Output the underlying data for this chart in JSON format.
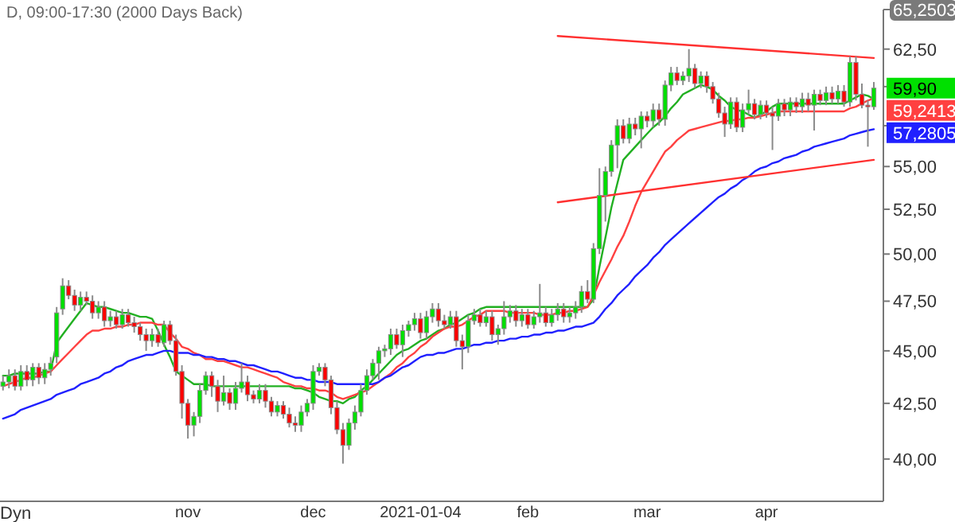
{
  "chart_data": {
    "type": "candlestick",
    "title": "D, 09:00-17:30 (2000 Days Back)",
    "categories": [
      null,
      null,
      null,
      null,
      null,
      null,
      null,
      null,
      null,
      null,
      null,
      null,
      null,
      null,
      null,
      null,
      null,
      null,
      null,
      null,
      null,
      null,
      null,
      null,
      null,
      null,
      null,
      null,
      null,
      null,
      null,
      "nov",
      null,
      null,
      null,
      null,
      null,
      null,
      null,
      null,
      null,
      null,
      null,
      null,
      null,
      null,
      null,
      null,
      null,
      null,
      null,
      null,
      "dec",
      null,
      null,
      null,
      null,
      null,
      null,
      null,
      null,
      null,
      null,
      null,
      null,
      null,
      null,
      null,
      null,
      null,
      "2021-01-04",
      null,
      null,
      null,
      null,
      null,
      null,
      null,
      null,
      null,
      null,
      null,
      null,
      null,
      null,
      null,
      null,
      null,
      "feb",
      null,
      null,
      null,
      null,
      null,
      null,
      null,
      null,
      null,
      null,
      null,
      null,
      null,
      null,
      null,
      null,
      null,
      null,
      null,
      "mar",
      null,
      null,
      null,
      null,
      null,
      null,
      null,
      null,
      null,
      null,
      null,
      null,
      null,
      null,
      null,
      null,
      null,
      null,
      null,
      "apr",
      null,
      null,
      null,
      null,
      null,
      null,
      null,
      null,
      null,
      null,
      null,
      null,
      null,
      null,
      null,
      null,
      null,
      null
    ],
    "ohlc": [
      [
        43.3,
        43.8,
        43.1,
        43.5
      ],
      [
        43.5,
        44.1,
        43.2,
        43.8
      ],
      [
        43.8,
        44.1,
        43.1,
        43.3
      ],
      [
        43.3,
        44.3,
        43.1,
        44.0
      ],
      [
        44.0,
        44.3,
        43.3,
        43.6
      ],
      [
        43.6,
        44.4,
        43.3,
        44.2
      ],
      [
        44.2,
        44.4,
        43.4,
        43.7
      ],
      [
        43.7,
        44.4,
        43.4,
        44.1
      ],
      [
        44.1,
        44.7,
        43.8,
        44.4
      ],
      [
        44.7,
        47.2,
        44.4,
        46.9
      ],
      [
        47.1,
        48.7,
        46.8,
        48.3
      ],
      [
        48.3,
        48.6,
        47.6,
        47.8
      ],
      [
        47.8,
        48.1,
        47.0,
        47.3
      ],
      [
        47.3,
        48.0,
        47.0,
        47.7
      ],
      [
        47.7,
        48.0,
        47.3,
        47.5
      ],
      [
        47.5,
        47.8,
        46.6,
        46.9
      ],
      [
        46.9,
        47.5,
        46.6,
        47.2
      ],
      [
        47.2,
        47.5,
        46.2,
        46.5
      ],
      [
        46.5,
        47.0,
        46.2,
        46.7
      ],
      [
        46.7,
        47.0,
        46.1,
        46.3
      ],
      [
        46.3,
        47.1,
        46.1,
        46.8
      ],
      [
        46.8,
        47.1,
        46.2,
        46.4
      ],
      [
        46.4,
        46.7,
        45.9,
        46.2
      ],
      [
        46.2,
        46.4,
        45.5,
        45.8
      ],
      [
        45.8,
        46.1,
        45.0,
        45.5
      ],
      [
        45.5,
        46.1,
        45.2,
        45.8
      ],
      [
        45.8,
        46.1,
        45.2,
        45.4
      ],
      [
        45.4,
        46.5,
        45.2,
        46.3
      ],
      [
        46.3,
        46.5,
        45.3,
        45.5
      ],
      [
        45.5,
        45.8,
        43.8,
        44.0
      ],
      [
        44.0,
        44.3,
        41.8,
        42.5
      ],
      [
        42.5,
        42.7,
        40.9,
        41.5
      ],
      [
        41.5,
        42.1,
        41.0,
        41.9
      ],
      [
        41.9,
        43.4,
        41.6,
        43.1
      ],
      [
        43.1,
        44.0,
        42.9,
        43.8
      ],
      [
        43.8,
        44.0,
        42.8,
        43.3
      ],
      [
        43.3,
        43.6,
        42.1,
        42.6
      ],
      [
        42.6,
        43.8,
        42.4,
        43.0
      ],
      [
        43.0,
        43.2,
        42.2,
        42.5
      ],
      [
        42.5,
        43.5,
        42.2,
        43.2
      ],
      [
        43.2,
        44.4,
        43.0,
        43.5
      ],
      [
        43.5,
        43.8,
        42.6,
        42.9
      ],
      [
        42.9,
        43.1,
        42.5,
        42.7
      ],
      [
        42.7,
        43.4,
        42.5,
        43.1
      ],
      [
        43.1,
        43.4,
        42.3,
        42.6
      ],
      [
        42.6,
        42.8,
        41.9,
        42.1
      ],
      [
        42.1,
        42.6,
        41.9,
        42.4
      ],
      [
        42.4,
        42.6,
        41.8,
        42.0
      ],
      [
        42.0,
        42.3,
        41.4,
        41.6
      ],
      [
        41.6,
        41.9,
        41.2,
        41.5
      ],
      [
        41.5,
        42.4,
        41.2,
        42.1
      ],
      [
        42.1,
        42.7,
        41.9,
        42.5
      ],
      [
        42.5,
        44.3,
        42.2,
        44.0
      ],
      [
        44.0,
        44.4,
        43.8,
        44.2
      ],
      [
        44.2,
        44.4,
        43.3,
        43.6
      ],
      [
        43.6,
        43.8,
        42.0,
        42.3
      ],
      [
        42.3,
        42.6,
        41.1,
        41.3
      ],
      [
        41.3,
        41.6,
        39.8,
        40.6
      ],
      [
        40.6,
        41.8,
        40.4,
        41.6
      ],
      [
        41.6,
        42.4,
        41.3,
        42.1
      ],
      [
        42.1,
        43.4,
        41.9,
        43.1
      ],
      [
        43.1,
        44.1,
        42.9,
        43.8
      ],
      [
        43.8,
        44.6,
        43.6,
        44.4
      ],
      [
        44.4,
        45.2,
        43.6,
        45.0
      ],
      [
        45.0,
        45.3,
        44.7,
        45.1
      ],
      [
        45.1,
        46.1,
        44.8,
        45.8
      ],
      [
        45.8,
        46.1,
        45.1,
        45.3
      ],
      [
        45.3,
        46.3,
        44.7,
        46.0
      ],
      [
        46.0,
        46.5,
        45.7,
        46.3
      ],
      [
        46.3,
        46.9,
        46.0,
        46.6
      ],
      [
        46.6,
        46.9,
        45.6,
        45.9
      ],
      [
        45.9,
        47.0,
        45.6,
        46.7
      ],
      [
        46.7,
        47.4,
        46.4,
        47.1
      ],
      [
        47.1,
        47.4,
        46.2,
        46.5
      ],
      [
        46.5,
        46.8,
        46.1,
        46.3
      ],
      [
        46.3,
        47.0,
        46.1,
        46.7
      ],
      [
        46.7,
        47.0,
        45.2,
        45.5
      ],
      [
        45.5,
        45.8,
        44.1,
        45.2
      ],
      [
        45.2,
        46.8,
        44.9,
        46.5
      ],
      [
        46.5,
        47.1,
        46.3,
        46.8
      ],
      [
        46.8,
        47.1,
        46.2,
        46.4
      ],
      [
        46.4,
        47.0,
        46.2,
        46.7
      ],
      [
        46.7,
        47.0,
        45.5,
        45.8
      ],
      [
        45.8,
        46.3,
        45.3,
        46.1
      ],
      [
        46.1,
        47.5,
        45.8,
        46.7
      ],
      [
        46.7,
        47.3,
        46.4,
        47.0
      ],
      [
        47.0,
        47.3,
        46.2,
        46.5
      ],
      [
        46.5,
        47.1,
        46.2,
        46.8
      ],
      [
        46.8,
        47.1,
        46.1,
        46.3
      ],
      [
        46.3,
        47.0,
        46.1,
        46.7
      ],
      [
        46.7,
        48.4,
        46.4,
        46.9
      ],
      [
        46.9,
        47.2,
        46.2,
        46.4
      ],
      [
        46.4,
        47.1,
        46.2,
        46.8
      ],
      [
        46.8,
        47.4,
        46.5,
        47.1
      ],
      [
        47.1,
        47.4,
        46.4,
        46.7
      ],
      [
        46.7,
        47.2,
        46.4,
        46.9
      ],
      [
        46.9,
        47.5,
        46.6,
        47.2
      ],
      [
        47.2,
        48.3,
        46.9,
        48.0
      ],
      [
        48.0,
        48.6,
        47.4,
        47.6
      ],
      [
        47.6,
        50.6,
        47.4,
        50.3
      ],
      [
        50.3,
        54.9,
        50.0,
        53.3
      ],
      [
        53.3,
        55.0,
        51.8,
        54.7
      ],
      [
        54.7,
        56.6,
        54.4,
        56.3
      ],
      [
        56.3,
        57.9,
        54.9,
        57.5
      ],
      [
        57.5,
        57.9,
        56.4,
        56.7
      ],
      [
        56.7,
        58.0,
        56.4,
        57.6
      ],
      [
        57.6,
        58.0,
        56.9,
        57.3
      ],
      [
        57.3,
        58.4,
        56.1,
        58.1
      ],
      [
        58.1,
        58.4,
        57.4,
        57.8
      ],
      [
        57.8,
        58.9,
        57.4,
        58.5
      ],
      [
        58.5,
        58.9,
        57.5,
        57.9
      ],
      [
        57.9,
        60.4,
        57.5,
        60.1
      ],
      [
        60.1,
        61.3,
        59.7,
        60.9
      ],
      [
        60.9,
        61.3,
        60.1,
        60.4
      ],
      [
        60.4,
        61.0,
        60.1,
        60.7
      ],
      [
        60.7,
        62.5,
        60.3,
        61.2
      ],
      [
        61.2,
        61.5,
        59.9,
        60.2
      ],
      [
        60.2,
        61.0,
        59.9,
        60.7
      ],
      [
        60.7,
        61.0,
        59.6,
        60.0
      ],
      [
        60.0,
        60.3,
        58.9,
        59.2
      ],
      [
        59.2,
        59.6,
        58.0,
        58.3
      ],
      [
        58.3,
        58.7,
        56.8,
        57.6
      ],
      [
        57.6,
        59.3,
        57.3,
        59.0
      ],
      [
        59.0,
        59.3,
        57.1,
        57.4
      ],
      [
        57.4,
        58.9,
        57.1,
        58.5
      ],
      [
        58.5,
        59.8,
        58.2,
        58.9
      ],
      [
        58.9,
        59.2,
        57.9,
        58.2
      ],
      [
        58.2,
        59.1,
        57.9,
        58.8
      ],
      [
        58.8,
        59.1,
        58.0,
        58.3
      ],
      [
        58.3,
        58.7,
        56.0,
        58.1
      ],
      [
        58.1,
        59.2,
        57.8,
        58.9
      ],
      [
        58.9,
        59.2,
        58.1,
        58.5
      ],
      [
        58.5,
        59.3,
        58.1,
        59.0
      ],
      [
        59.0,
        59.3,
        58.3,
        58.7
      ],
      [
        58.7,
        59.6,
        58.3,
        59.2
      ],
      [
        59.2,
        59.6,
        58.4,
        58.8
      ],
      [
        58.8,
        59.8,
        57.2,
        59.5
      ],
      [
        59.5,
        59.8,
        58.8,
        59.1
      ],
      [
        59.1,
        60.0,
        58.8,
        59.6
      ],
      [
        59.6,
        60.0,
        58.9,
        59.2
      ],
      [
        59.2,
        60.1,
        58.9,
        59.7
      ],
      [
        59.7,
        60.1,
        58.7,
        59.0
      ],
      [
        59.0,
        62.0,
        58.7,
        61.6
      ],
      [
        61.6,
        62.0,
        59.1,
        59.5
      ],
      [
        59.5,
        60.2,
        58.6,
        58.8
      ],
      [
        58.8,
        59.1,
        56.2,
        58.7
      ],
      [
        58.7,
        60.3,
        58.5,
        59.9
      ]
    ],
    "series": [
      {
        "type": "line",
        "color": "#22b022",
        "values": [
          43.8,
          43.8,
          43.9,
          43.9,
          43.9,
          43.9,
          43.9,
          44.0,
          44.0,
          45.4,
          45.8,
          46.2,
          46.6,
          47.0,
          47.4,
          47.3,
          47.2,
          47.2,
          47.1,
          47.0,
          46.9,
          46.9,
          46.8,
          46.7,
          46.7,
          46.6,
          46.0,
          45.3,
          44.7,
          44.0,
          43.8,
          43.6,
          43.4,
          43.4,
          43.4,
          43.3,
          43.3,
          43.3,
          43.3,
          43.3,
          43.3,
          43.3,
          43.3,
          43.3,
          43.3,
          43.3,
          43.3,
          43.3,
          43.3,
          43.2,
          43.2,
          43.1,
          43.0,
          42.8,
          42.7,
          42.6,
          42.6,
          42.5,
          42.7,
          42.8,
          43.1,
          43.3,
          43.6,
          43.9,
          44.2,
          44.5,
          44.8,
          45.0,
          45.1,
          45.3,
          45.5,
          45.6,
          45.8,
          46.0,
          46.1,
          46.3,
          46.4,
          46.6,
          46.8,
          46.9,
          47.1,
          47.2,
          47.2,
          47.2,
          47.2,
          47.2,
          47.2,
          47.2,
          47.2,
          47.2,
          47.2,
          47.2,
          47.2,
          47.2,
          47.2,
          47.2,
          47.2,
          47.2,
          47.2,
          47.6,
          49.3,
          50.9,
          52.6,
          54.0,
          55.4,
          55.8,
          56.2,
          56.6,
          57.0,
          57.4,
          57.7,
          58.1,
          58.6,
          59.0,
          59.5,
          59.7,
          59.9,
          60.1,
          60.0,
          59.8,
          59.4,
          59.1,
          58.7,
          58.5,
          58.4,
          58.2,
          58.0,
          58.2,
          58.4,
          58.7,
          58.9,
          58.9,
          58.9,
          58.9,
          58.9,
          58.9,
          58.9,
          58.9,
          58.9,
          58.9,
          58.9,
          58.9,
          59.1,
          59.3,
          59.5,
          59.4,
          59.2
        ]
      },
      {
        "type": "line",
        "color": "#ff4040",
        "values": [
          43.3,
          43.4,
          43.5,
          43.6,
          43.7,
          43.7,
          43.8,
          43.9,
          44.0,
          44.3,
          44.6,
          44.9,
          45.2,
          45.5,
          45.8,
          46.0,
          46.0,
          46.1,
          46.1,
          46.2,
          46.2,
          46.3,
          46.3,
          46.4,
          46.4,
          46.4,
          46.3,
          46.3,
          45.9,
          45.6,
          45.2,
          45.1,
          44.9,
          44.8,
          44.6,
          44.6,
          44.5,
          44.5,
          44.4,
          44.3,
          44.2,
          44.2,
          44.1,
          44.0,
          43.9,
          43.8,
          43.7,
          43.5,
          43.4,
          43.3,
          43.3,
          43.2,
          43.2,
          43.1,
          43.1,
          43.0,
          42.8,
          42.7,
          42.8,
          42.9,
          43.0,
          43.1,
          43.3,
          43.5,
          43.7,
          43.9,
          44.2,
          44.4,
          44.7,
          44.9,
          45.2,
          45.4,
          45.7,
          45.9,
          46.1,
          46.2,
          46.2,
          46.3,
          46.5,
          46.7,
          46.8,
          47.0,
          47.0,
          47.0,
          47.0,
          46.9,
          46.9,
          46.9,
          46.9,
          46.9,
          46.8,
          46.8,
          46.8,
          46.9,
          46.9,
          47.0,
          47.0,
          47.1,
          47.2,
          47.8,
          48.5,
          49.1,
          49.7,
          50.4,
          51.0,
          51.8,
          52.7,
          53.5,
          54.1,
          54.7,
          55.3,
          55.9,
          56.2,
          56.6,
          56.9,
          57.2,
          57.3,
          57.4,
          57.5,
          57.6,
          57.7,
          57.8,
          57.8,
          57.9,
          57.9,
          58.0,
          58.0,
          58.1,
          58.2,
          58.3,
          58.4,
          58.4,
          58.4,
          58.4,
          58.4,
          58.4,
          58.4,
          58.4,
          58.4,
          58.4,
          58.4,
          58.4,
          58.6,
          58.7,
          58.9,
          59.1,
          59.2413
        ],
        "value_labels": [
          null,
          null,
          null,
          null,
          null,
          null,
          null,
          null,
          null,
          null,
          null,
          null,
          null,
          null,
          null,
          null,
          null,
          null,
          null,
          null,
          null,
          null,
          null,
          null,
          null,
          null,
          null,
          null,
          null,
          null,
          null,
          null,
          null,
          null,
          null,
          null,
          null,
          null,
          null,
          null,
          null,
          null,
          null,
          null,
          null,
          null,
          null,
          null,
          null,
          null,
          null,
          null,
          null,
          null,
          null,
          null,
          null,
          null,
          null,
          null,
          null,
          null,
          null,
          null,
          null,
          null,
          null,
          null,
          null,
          null,
          null,
          null,
          null,
          null,
          null,
          null,
          null,
          null,
          null,
          null,
          null,
          null,
          null,
          null,
          null,
          null,
          null,
          null,
          null,
          null,
          null,
          null,
          null,
          null,
          null,
          null,
          null,
          null,
          null,
          null,
          null,
          null,
          null,
          null,
          null,
          null,
          null,
          null,
          null,
          null,
          null,
          null,
          null,
          null,
          null,
          null,
          null,
          null,
          null,
          null,
          null,
          null,
          null,
          null,
          null,
          null,
          null,
          null,
          null,
          null,
          null,
          null,
          null,
          null,
          null,
          null,
          null,
          null,
          null,
          null,
          null,
          null,
          null,
          null,
          null,
          null,
          "59,2413"
        ]
      },
      {
        "type": "line",
        "color": "#2020ff",
        "values": [
          41.8,
          41.9,
          42.0,
          42.2,
          42.3,
          42.4,
          42.5,
          42.6,
          42.7,
          42.9,
          43.0,
          43.1,
          43.2,
          43.4,
          43.5,
          43.6,
          43.7,
          43.9,
          44.0,
          44.2,
          44.3,
          44.5,
          44.6,
          44.7,
          44.8,
          44.8,
          44.9,
          45.0,
          45.0,
          44.9,
          44.9,
          44.9,
          44.8,
          44.8,
          44.7,
          44.7,
          44.6,
          44.6,
          44.5,
          44.5,
          44.4,
          44.3,
          44.3,
          44.2,
          44.1,
          44.0,
          44.0,
          43.9,
          43.8,
          43.7,
          43.7,
          43.6,
          43.6,
          43.5,
          43.5,
          43.5,
          43.4,
          43.4,
          43.4,
          43.4,
          43.4,
          43.4,
          43.4,
          43.5,
          43.7,
          43.8,
          44.0,
          44.2,
          44.3,
          44.5,
          44.7,
          44.8,
          44.8,
          44.9,
          44.9,
          45.0,
          45.1,
          45.1,
          45.2,
          45.3,
          45.3,
          45.4,
          45.4,
          45.5,
          45.5,
          45.6,
          45.6,
          45.7,
          45.7,
          45.8,
          45.8,
          45.9,
          45.9,
          46.0,
          46.0,
          46.1,
          46.2,
          46.2,
          46.3,
          46.4,
          46.7,
          47.1,
          47.4,
          47.8,
          48.1,
          48.4,
          48.8,
          49.1,
          49.4,
          49.8,
          50.1,
          50.5,
          50.8,
          51.1,
          51.4,
          51.7,
          52.0,
          52.3,
          52.6,
          52.9,
          53.2,
          53.4,
          53.7,
          53.9,
          54.2,
          54.4,
          54.7,
          54.9,
          55.0,
          55.2,
          55.3,
          55.5,
          55.6,
          55.7,
          55.9,
          56.0,
          56.2,
          56.3,
          56.4,
          56.5,
          56.6,
          56.7,
          56.9,
          57.0,
          57.1,
          57.2,
          57.2805
        ],
        "value_labels": [
          null,
          null,
          null,
          null,
          null,
          null,
          null,
          null,
          null,
          null,
          null,
          null,
          null,
          null,
          null,
          null,
          null,
          null,
          null,
          null,
          null,
          null,
          null,
          null,
          null,
          null,
          null,
          null,
          null,
          null,
          null,
          null,
          null,
          null,
          null,
          null,
          null,
          null,
          null,
          null,
          null,
          null,
          null,
          null,
          null,
          null,
          null,
          null,
          null,
          null,
          null,
          null,
          null,
          null,
          null,
          null,
          null,
          null,
          null,
          null,
          null,
          null,
          null,
          null,
          null,
          null,
          null,
          null,
          null,
          null,
          null,
          null,
          null,
          null,
          null,
          null,
          null,
          null,
          null,
          null,
          null,
          null,
          null,
          null,
          null,
          null,
          null,
          null,
          null,
          null,
          null,
          null,
          null,
          null,
          null,
          null,
          null,
          null,
          null,
          null,
          null,
          null,
          null,
          null,
          null,
          null,
          null,
          null,
          null,
          null,
          null,
          null,
          null,
          null,
          null,
          null,
          null,
          null,
          null,
          null,
          null,
          null,
          null,
          null,
          null,
          null,
          null,
          null,
          null,
          null,
          null,
          null,
          null,
          null,
          null,
          null,
          null,
          null,
          null,
          null,
          null,
          null,
          null,
          null,
          null,
          null,
          "57,2805"
        ]
      },
      {
        "type": "line",
        "color": "#ff3030",
        "values": [
          null,
          null,
          null,
          null,
          null,
          null,
          null,
          null,
          null,
          null,
          null,
          null,
          null,
          null,
          null,
          null,
          null,
          null,
          null,
          null,
          null,
          null,
          null,
          null,
          null,
          null,
          null,
          null,
          null,
          null,
          null,
          null,
          null,
          null,
          null,
          null,
          null,
          null,
          null,
          null,
          null,
          null,
          null,
          null,
          null,
          null,
          null,
          null,
          null,
          null,
          null,
          null,
          null,
          null,
          null,
          null,
          null,
          null,
          null,
          null,
          null,
          null,
          null,
          null,
          null,
          null,
          null,
          null,
          null,
          null,
          null,
          null,
          null,
          null,
          null,
          null,
          null,
          null,
          null,
          null,
          null,
          null,
          null,
          null,
          null,
          null,
          null,
          null,
          null,
          null,
          null,
          null,
          null,
          63.4,
          null,
          null,
          null,
          null,
          null,
          null,
          null,
          null,
          null,
          null,
          null,
          null,
          null,
          null,
          null,
          null,
          null,
          null,
          null,
          null,
          null,
          null,
          null,
          null,
          null,
          null,
          null,
          null,
          null,
          null,
          null,
          null,
          null,
          null,
          null,
          null,
          null,
          null,
          null,
          null,
          null,
          null,
          null,
          null,
          null,
          null,
          null,
          null,
          null,
          null,
          null,
          null,
          61.9
        ]
      },
      {
        "type": "line",
        "color": "#ff3030",
        "values": [
          null,
          null,
          null,
          null,
          null,
          null,
          null,
          null,
          null,
          null,
          null,
          null,
          null,
          null,
          null,
          null,
          null,
          null,
          null,
          null,
          null,
          null,
          null,
          null,
          null,
          null,
          null,
          null,
          null,
          null,
          null,
          null,
          null,
          null,
          null,
          null,
          null,
          null,
          null,
          null,
          null,
          null,
          null,
          null,
          null,
          null,
          null,
          null,
          null,
          null,
          null,
          null,
          null,
          null,
          null,
          null,
          null,
          null,
          null,
          null,
          null,
          null,
          null,
          null,
          null,
          null,
          null,
          null,
          null,
          null,
          null,
          null,
          null,
          null,
          null,
          null,
          null,
          null,
          null,
          null,
          null,
          null,
          null,
          null,
          null,
          null,
          null,
          null,
          null,
          null,
          null,
          null,
          null,
          52.9,
          null,
          null,
          null,
          null,
          null,
          null,
          null,
          null,
          null,
          null,
          null,
          null,
          null,
          null,
          null,
          null,
          null,
          null,
          null,
          null,
          null,
          null,
          null,
          null,
          null,
          null,
          null,
          null,
          null,
          null,
          null,
          null,
          null,
          null,
          null,
          null,
          null,
          null,
          null,
          null,
          null,
          null,
          null,
          null,
          null,
          null,
          null,
          null,
          null,
          null,
          null,
          null,
          55.4
        ]
      }
    ],
    "ylim": [
      38.2,
      65.2503
    ],
    "yticks": [
      {
        "value": 40,
        "label": "40,00"
      },
      {
        "value": 42.5,
        "label": "42,50"
      },
      {
        "value": 45,
        "label": "45,00"
      },
      {
        "value": 47.5,
        "label": "47,50"
      },
      {
        "value": 50,
        "label": "50,00"
      },
      {
        "value": 52.5,
        "label": "52,50"
      },
      {
        "value": 55,
        "label": "55,00"
      },
      {
        "value": 57.5,
        "label": null
      },
      {
        "value": 60,
        "label": null
      },
      {
        "value": 62.5,
        "label": "62,50"
      },
      {
        "value": 65.2503,
        "label": "65,2503"
      }
    ],
    "log": true,
    "annotations": [
      "59,90",
      "Dyn"
    ]
  }
}
